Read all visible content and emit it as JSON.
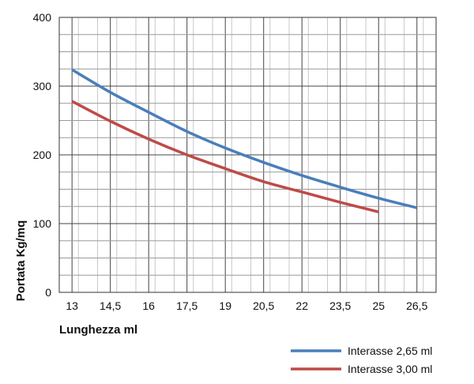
{
  "chart_data": {
    "type": "line",
    "xlabel": "Lunghezza ml",
    "ylabel": "Portata Kg/mq",
    "ylim": [
      0,
      400
    ],
    "x_ticks": [
      "13",
      "14,5",
      "16",
      "17,5",
      "19",
      "20,5",
      "22",
      "23,5",
      "25",
      "26,5"
    ],
    "x_tick_values": [
      13,
      14.5,
      16,
      17.5,
      19,
      20.5,
      22,
      23.5,
      25,
      26.5
    ],
    "y_ticks": [
      0,
      100,
      200,
      300,
      400
    ],
    "xlim": [
      12.5,
      27.25
    ],
    "grid": true,
    "legend_position": "bottom-right",
    "series": [
      {
        "name": "Interasse 2,65 ml",
        "color": "#4a7ebb",
        "x": [
          13,
          14.5,
          16,
          17.5,
          19,
          20.5,
          22,
          23.5,
          25,
          26.5
        ],
        "y": [
          324,
          291,
          262,
          234,
          210,
          189,
          170,
          153,
          137,
          123
        ]
      },
      {
        "name": "Interasse 3,00 ml",
        "color": "#be4b48",
        "x": [
          13,
          14.5,
          16,
          17.5,
          19,
          20.5,
          22,
          23.5,
          25
        ],
        "y": [
          278,
          249,
          223,
          200,
          180,
          161,
          146,
          131,
          117
        ]
      }
    ]
  }
}
